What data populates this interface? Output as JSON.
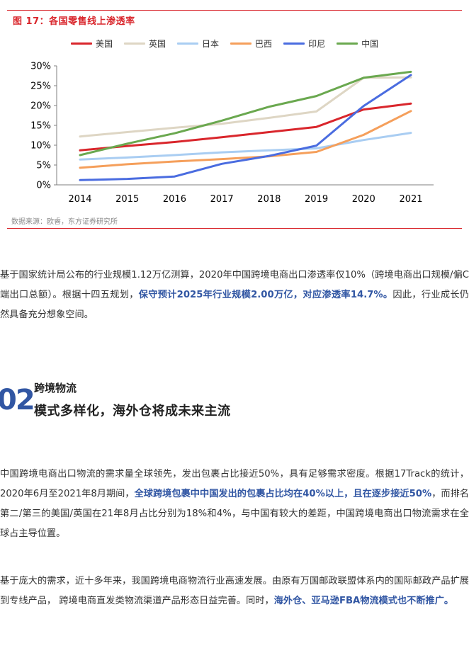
{
  "figure": {
    "title": "图 17：各国零售线上渗透率",
    "source": "数据来源：欧睿，东方证券研究所"
  },
  "chart_data": {
    "type": "line",
    "title": "图 17：各国零售线上渗透率",
    "x": [
      "2014",
      "2015",
      "2016",
      "2017",
      "2018",
      "2019",
      "2020",
      "2021"
    ],
    "ylim": [
      0,
      30
    ],
    "yticks": [
      "0%",
      "5%",
      "10%",
      "15%",
      "20%",
      "25%",
      "30%"
    ],
    "grid": false,
    "legend_position": "top",
    "series": [
      {
        "name": "美国",
        "color": "#d9262c",
        "values": [
          8.7,
          9.8,
          10.8,
          12.0,
          13.3,
          14.6,
          19.0,
          20.5
        ]
      },
      {
        "name": "英国",
        "color": "#ded6c4",
        "values": [
          12.2,
          13.3,
          14.4,
          15.4,
          16.9,
          18.5,
          27.0,
          27.1
        ]
      },
      {
        "name": "日本",
        "color": "#a9cdf2",
        "values": [
          6.4,
          6.9,
          7.5,
          8.2,
          8.7,
          9.2,
          11.3,
          13.1
        ]
      },
      {
        "name": "巴西",
        "color": "#f59f5b",
        "values": [
          4.3,
          5.2,
          5.9,
          6.5,
          7.2,
          8.3,
          12.6,
          18.6
        ]
      },
      {
        "name": "印尼",
        "color": "#4a6ce0",
        "values": [
          1.2,
          1.5,
          2.1,
          5.3,
          7.3,
          9.9,
          19.9,
          27.7
        ]
      },
      {
        "name": "中国",
        "color": "#6aa84f",
        "values": [
          7.5,
          10.4,
          13.0,
          16.2,
          19.7,
          22.4,
          27.0,
          28.5
        ]
      }
    ]
  },
  "para1": {
    "t1": "基于国家统计局公布的行业规模1.12万亿测算，2020年中国跨境电商出口渗透率仅10%（跨境电商出口规模/偏C端出口总额）。根据十四五规划，",
    "h1": "保守预计2025年行业规模2.00万亿，对应渗透率14.7%。",
    "t2": "因此，行业成长仍然具备充分想象空间。"
  },
  "section": {
    "number": "02",
    "label": "跨境物流",
    "title": "模式多样化，海外仓将成未来主流"
  },
  "para2": {
    "t1": "中国跨境电商出口物流的需求量全球领先，发出包裹占比接近50%，具有足够需求密度。根据17Track的统计，2020年6月至2021年8月期间，",
    "h1": "全球跨境包裹中中国发出的包裹占比均在40%以上，且在逐步接近50%",
    "t2": "，而排名第二/第三的美国/英国在21年8月占比分别为18%和4%，与中国有较大的差距，中国跨境电商出口物流需求在全球占主导位置。"
  },
  "para3": {
    "t1": "基于庞大的需求，近十多年来，我国跨境电商物流行业高速发展。由原有万国邮政联盟体系内的国际邮政产品扩展到专线产品， 跨境电商直发类物流渠道产品形态日益完善。同时，",
    "h1": "海外仓、亚马逊FBA物流模式也不断推广。"
  }
}
